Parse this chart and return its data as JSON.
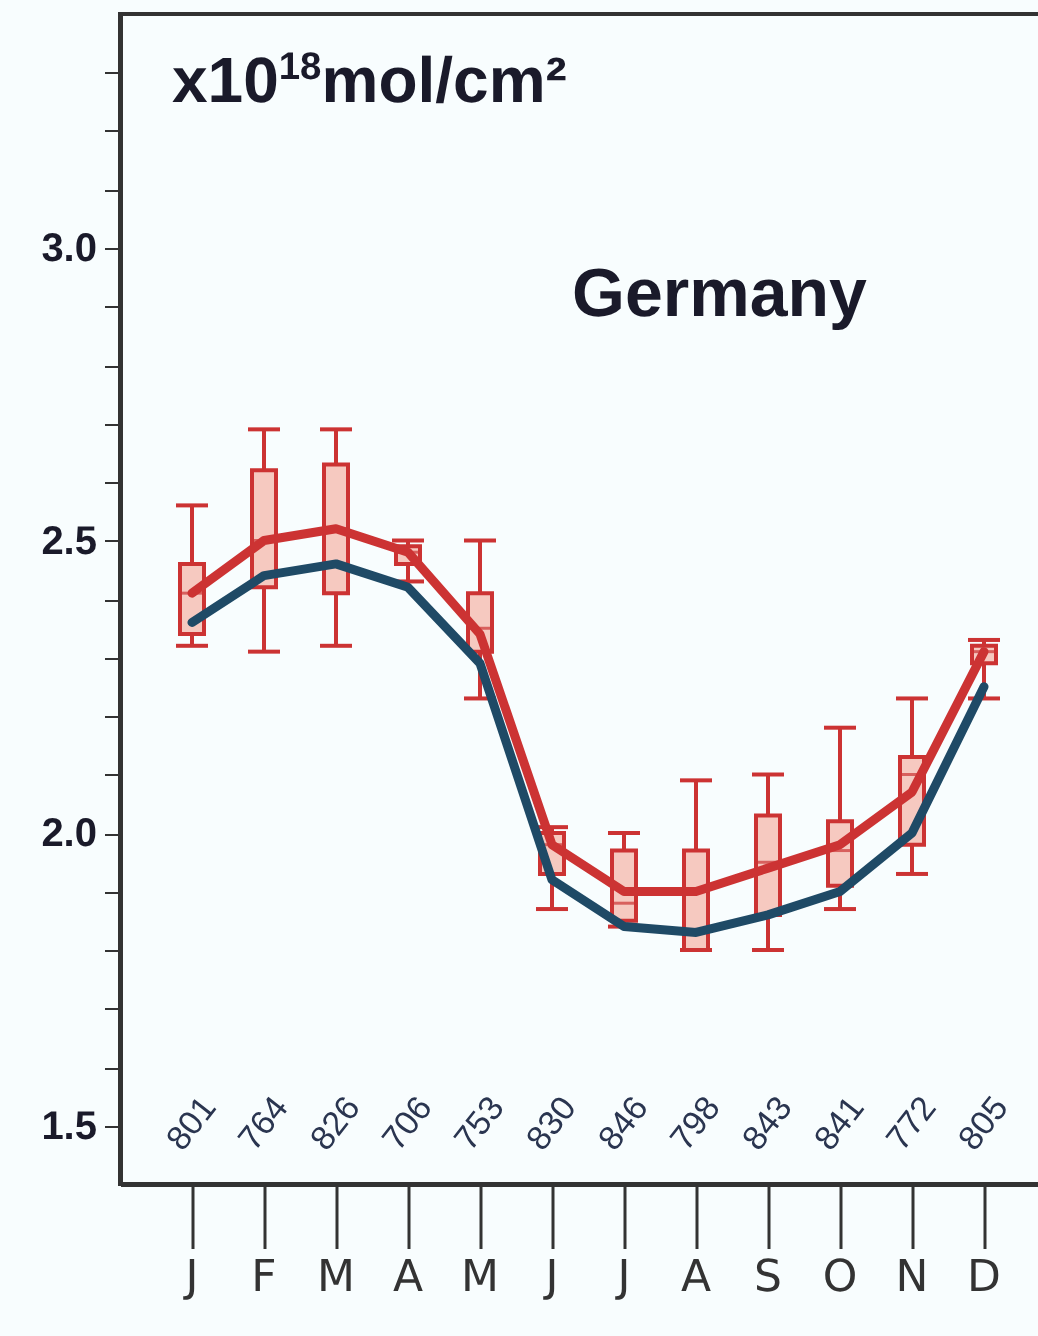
{
  "chart_data": {
    "type": "line",
    "title": "Germany",
    "ylabel": "x10$^{18}$mol/cm²",
    "categories": [
      "J",
      "F",
      "M",
      "A",
      "M",
      "J",
      "J",
      "A",
      "S",
      "O",
      "N",
      "D"
    ],
    "ylim": [
      1.4,
      3.4
    ],
    "yticks": [
      {
        "value": 1.5,
        "label": "1.5"
      },
      {
        "value": 1.6,
        "label": null
      },
      {
        "value": 1.7,
        "label": null
      },
      {
        "value": 1.8,
        "label": null
      },
      {
        "value": 1.9,
        "label": null
      },
      {
        "value": 2.0,
        "label": "2.0"
      },
      {
        "value": 2.1,
        "label": null
      },
      {
        "value": 2.2,
        "label": null
      },
      {
        "value": 2.3,
        "label": null
      },
      {
        "value": 2.4,
        "label": null
      },
      {
        "value": 2.5,
        "label": "2.5"
      },
      {
        "value": 2.6,
        "label": null
      },
      {
        "value": 2.7,
        "label": null
      },
      {
        "value": 2.8,
        "label": null
      },
      {
        "value": 2.9,
        "label": null
      },
      {
        "value": 3.0,
        "label": "3.0"
      },
      {
        "value": 3.1,
        "label": null
      },
      {
        "value": 3.2,
        "label": null
      },
      {
        "value": 3.3,
        "label": null
      }
    ],
    "grid": false,
    "series": [
      {
        "type": "box",
        "color": "#cc3333",
        "boxes": [
          {
            "low": 2.32,
            "q1": 2.34,
            "median": 2.41,
            "q3": 2.46,
            "high": 2.56
          },
          {
            "low": 2.31,
            "q1": 2.42,
            "median": 2.5,
            "q3": 2.62,
            "high": 2.69
          },
          {
            "low": 2.32,
            "q1": 2.41,
            "median": 2.52,
            "q3": 2.63,
            "high": 2.69
          },
          {
            "low": 2.43,
            "q1": 2.46,
            "median": 2.48,
            "q3": 2.49,
            "high": 2.5
          },
          {
            "low": 2.23,
            "q1": 2.31,
            "median": 2.35,
            "q3": 2.41,
            "high": 2.5
          },
          {
            "low": 1.87,
            "q1": 1.93,
            "median": 1.98,
            "q3": 2.0,
            "high": 2.01
          },
          {
            "low": 1.84,
            "q1": 1.85,
            "median": 1.88,
            "q3": 1.97,
            "high": 2.0
          },
          {
            "low": 1.8,
            "q1": 1.8,
            "median": 1.9,
            "q3": 1.97,
            "high": 2.09
          },
          {
            "low": 1.8,
            "q1": 1.86,
            "median": 1.95,
            "q3": 2.03,
            "high": 2.1
          },
          {
            "low": 1.87,
            "q1": 1.91,
            "median": 1.97,
            "q3": 2.02,
            "high": 2.18
          },
          {
            "low": 1.93,
            "q1": 1.98,
            "median": 2.1,
            "q3": 2.13,
            "high": 2.23
          },
          {
            "low": 2.23,
            "q1": 2.29,
            "median": 2.31,
            "q3": 2.32,
            "high": 2.33
          }
        ]
      },
      {
        "color": "#1f4a66",
        "values": [
          2.36,
          2.44,
          2.46,
          2.42,
          2.29,
          1.92,
          1.84,
          1.83,
          1.86,
          1.9,
          2.0,
          2.25
        ]
      },
      {
        "color": "#cc3333",
        "values": [
          2.41,
          2.5,
          2.52,
          2.48,
          2.34,
          1.98,
          1.9,
          1.9,
          1.94,
          1.98,
          2.07,
          2.31
        ]
      }
    ],
    "annotations": [
      "801",
      "764",
      "826",
      "706",
      "753",
      "830",
      "846",
      "798",
      "843",
      "841",
      "772",
      "805"
    ]
  }
}
